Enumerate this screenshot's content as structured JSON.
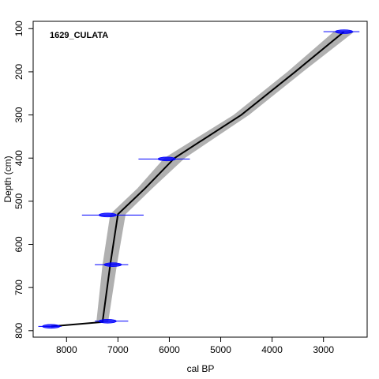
{
  "chart_data": {
    "type": "line",
    "title": "1629_CULATA",
    "xlabel": "cal BP",
    "ylabel": "Depth (cm)",
    "xlim": [
      8650,
      2150
    ],
    "ylim": [
      815,
      83
    ],
    "x_ticks": [
      8000,
      7000,
      6000,
      5000,
      4000,
      3000
    ],
    "y_ticks": [
      100,
      200,
      300,
      400,
      500,
      600,
      700,
      800
    ],
    "grid": false,
    "series": [
      {
        "type": "age-depth-model",
        "color": "#000000",
        "envelope_color": "#b0b0b0",
        "depth": [
          107,
          200,
          300,
          400,
          470,
          530,
          647,
          780,
          790
        ],
        "age": [
          2600,
          3550,
          4600,
          5900,
          6470,
          7000,
          7150,
          7300,
          8300
        ],
        "age_min": [
          2400,
          3400,
          4450,
          5700,
          6330,
          6850,
          7020,
          7190,
          8250
        ],
        "age_max": [
          2800,
          3700,
          4750,
          6100,
          6620,
          7150,
          7300,
          7420,
          8350
        ]
      },
      {
        "type": "dated-samples",
        "color": "#0000ff",
        "points": [
          {
            "depth": 107,
            "age": 2600,
            "err_min": 2300,
            "err_max": 3000
          },
          {
            "depth": 402,
            "age": 6050,
            "err_min": 5600,
            "err_max": 6600
          },
          {
            "depth": 532,
            "age": 7200,
            "err_min": 6500,
            "err_max": 7700
          },
          {
            "depth": 647,
            "age": 7100,
            "err_min": 6800,
            "err_max": 7450
          },
          {
            "depth": 778,
            "age": 7200,
            "err_min": 6800,
            "err_max": 7450
          },
          {
            "depth": 790,
            "age": 8300,
            "err_min": 8100,
            "err_max": 8550
          }
        ]
      }
    ]
  }
}
